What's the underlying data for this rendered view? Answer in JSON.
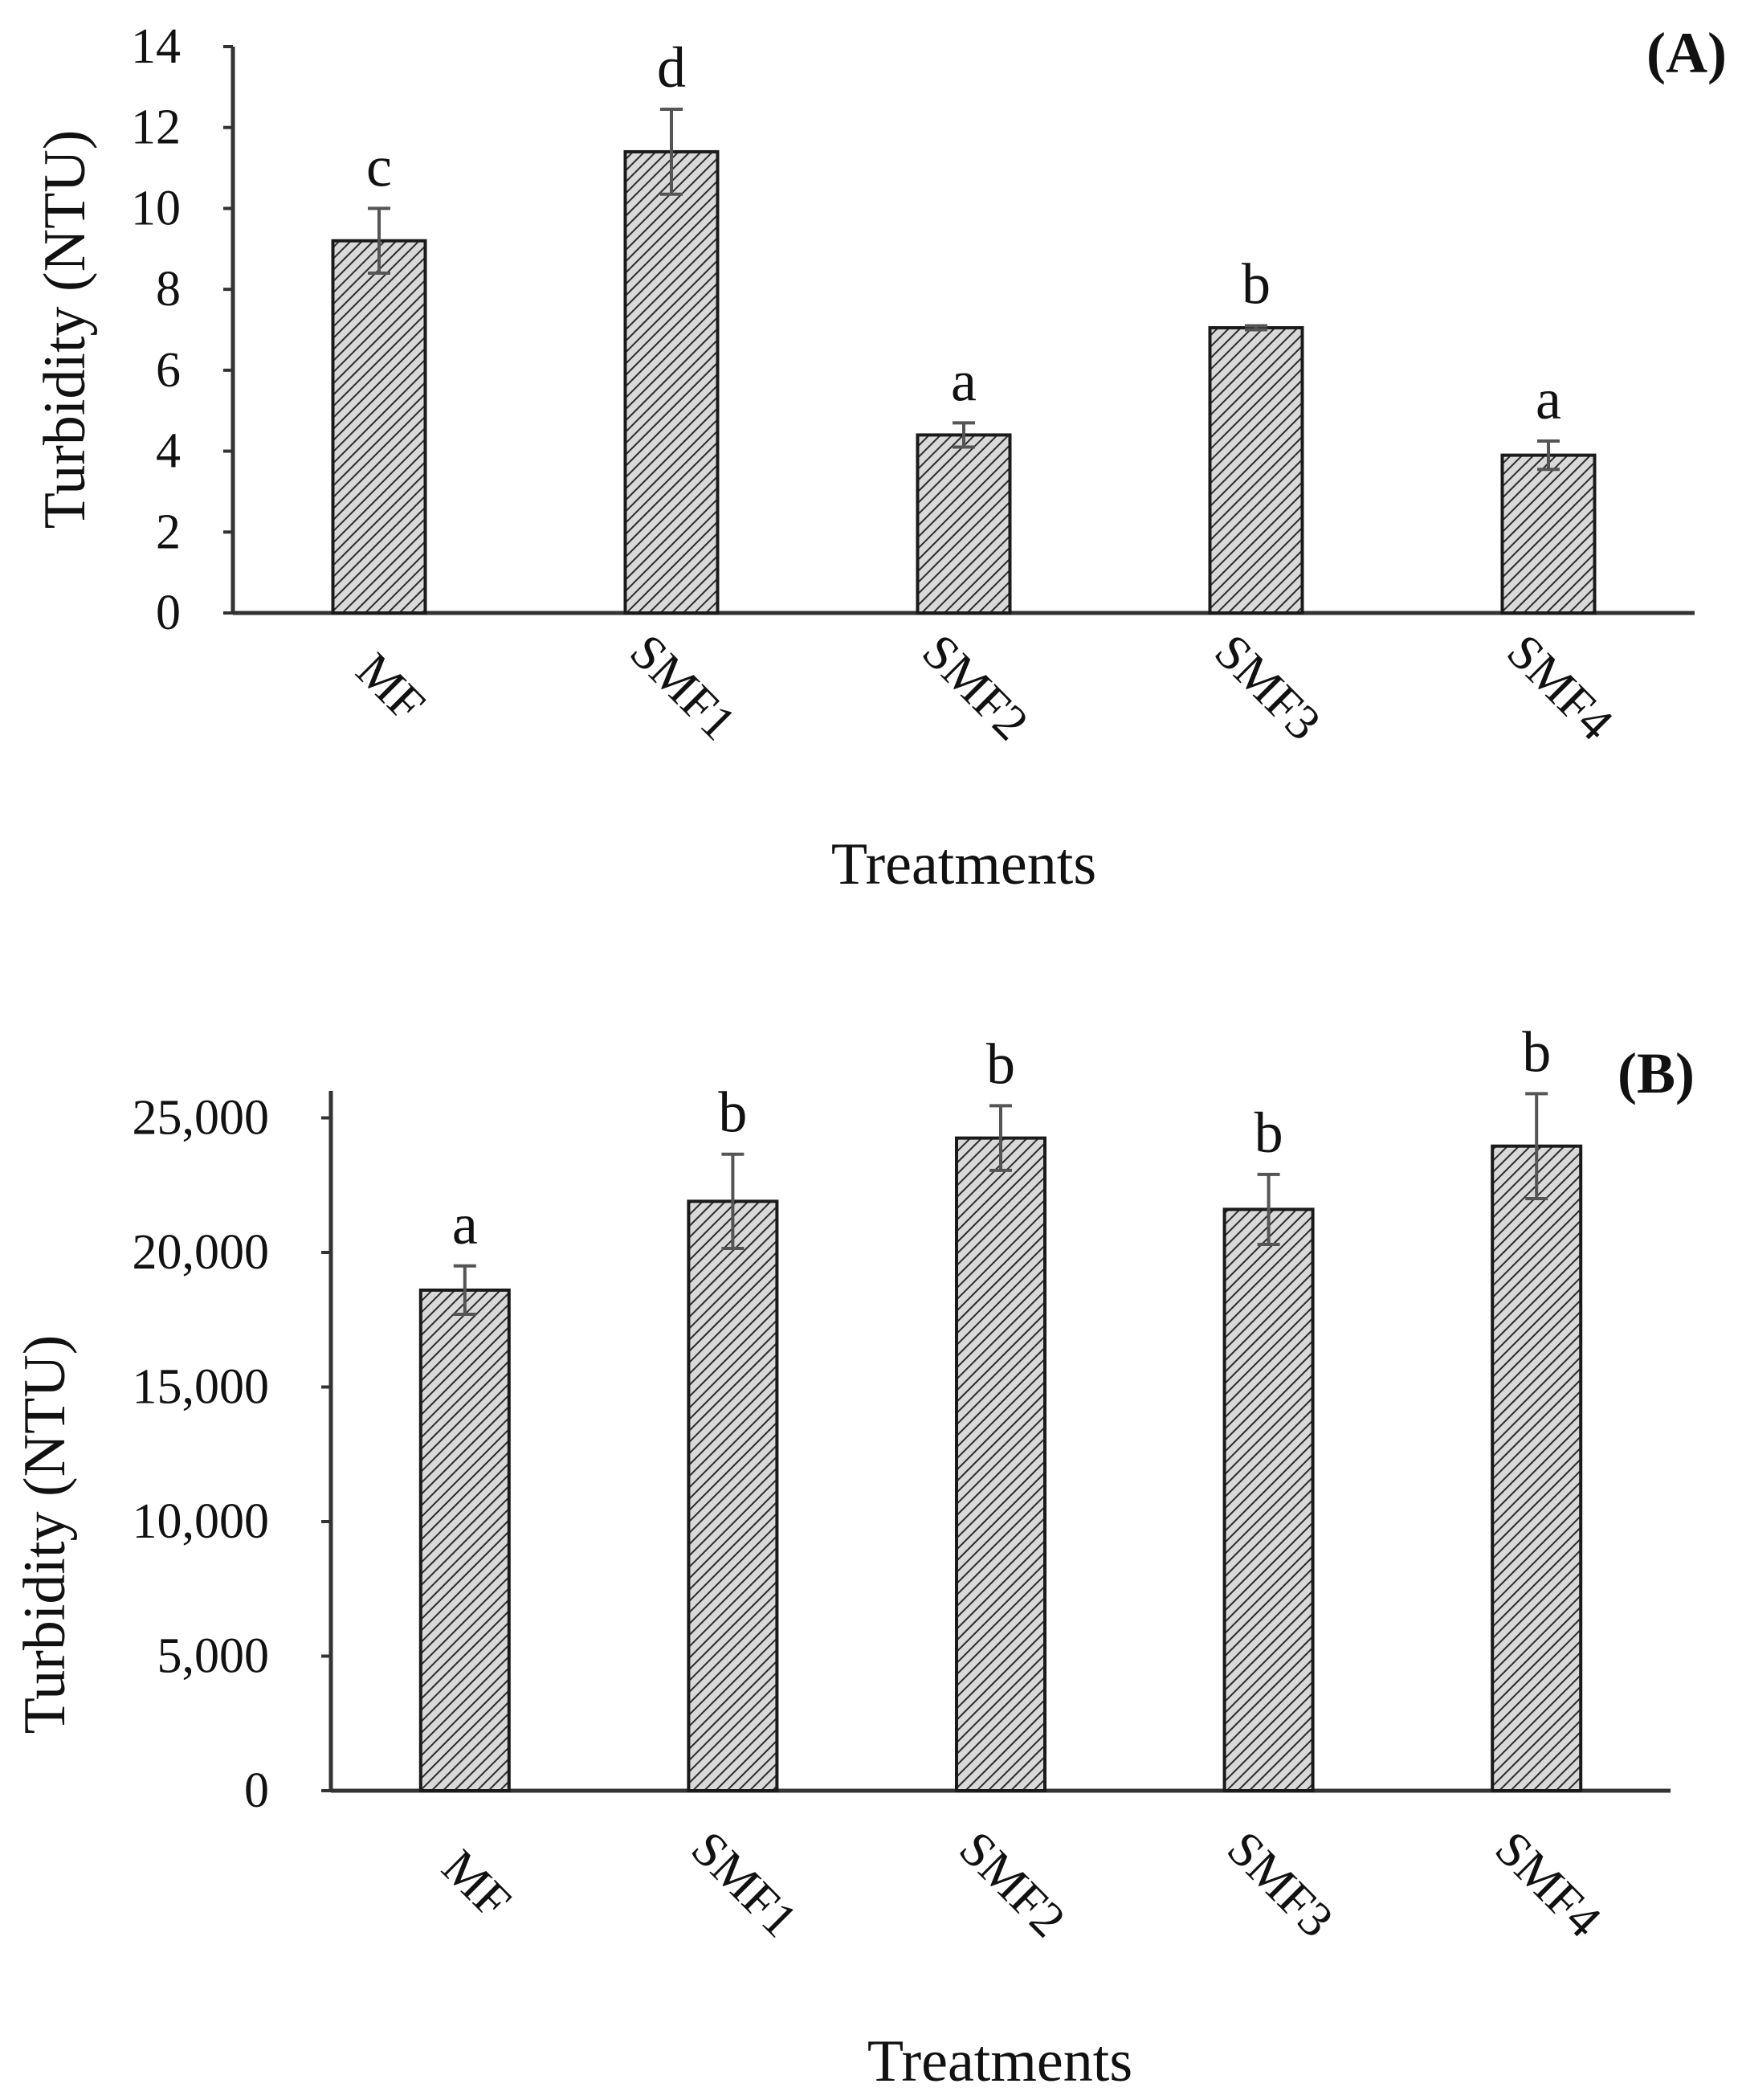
{
  "chart_data": [
    {
      "type": "bar",
      "panel_label": "(A)",
      "categories": [
        "MF",
        "SMF1",
        "SMF2",
        "SMF3",
        "SMF4"
      ],
      "values": [
        9.2,
        11.4,
        4.4,
        7.05,
        3.9
      ],
      "error": [
        0.8,
        1.05,
        0.3,
        0.05,
        0.35
      ],
      "significance": [
        "c",
        "d",
        "a",
        "b",
        "a"
      ],
      "xlabel": "Treatments",
      "ylabel": "Turbidity (NTU)",
      "ylim": [
        0,
        14
      ],
      "yticks": [
        0,
        2,
        4,
        6,
        8,
        10,
        12,
        14
      ],
      "ytick_labels": [
        "0",
        "2",
        "4",
        "6",
        "8",
        "10",
        "12",
        "14"
      ],
      "grid": false,
      "pattern": "diagonal-hatch"
    },
    {
      "type": "bar",
      "panel_label": "(B)",
      "categories": [
        "MF",
        "SMF1",
        "SMF2",
        "SMF3",
        "SMF4"
      ],
      "values": [
        18600,
        21900,
        24250,
        21600,
        23950
      ],
      "error": [
        900,
        1750,
        1200,
        1300,
        1950
      ],
      "significance": [
        "a",
        "b",
        "b",
        "b",
        "b"
      ],
      "xlabel": "Treatments",
      "ylabel": "Turbidity (NTU)",
      "ylim": [
        0,
        26000
      ],
      "yticks": [
        0,
        5000,
        10000,
        15000,
        20000,
        25000
      ],
      "ytick_labels": [
        "0",
        "5,000",
        "10,000",
        "15,000",
        "20,000",
        "25,000"
      ],
      "grid": false,
      "pattern": "diagonal-hatch"
    }
  ],
  "colors": {
    "axis": "#333333",
    "bar_fill": "#d9d9d9",
    "hatch": "#2b2b2b",
    "bar_edge": "#1a1a1a",
    "error_bar": "#555555",
    "text": "#111111"
  }
}
